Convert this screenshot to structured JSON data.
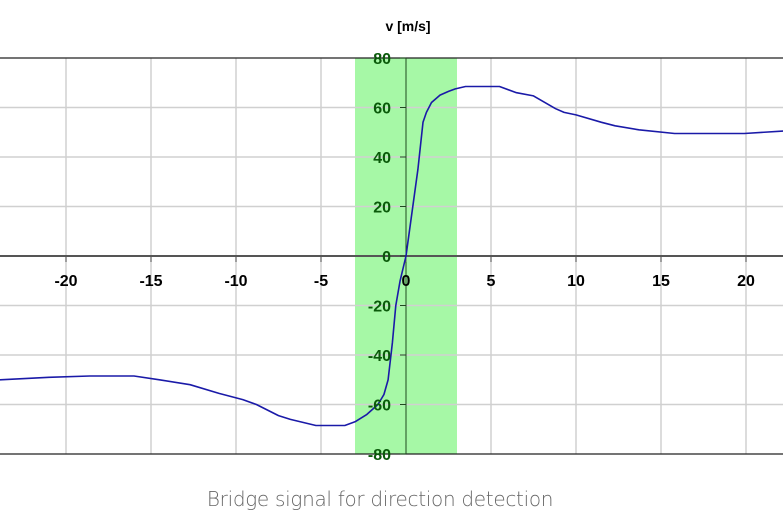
{
  "caption": "Bridge signal for direction detection",
  "chart_data": {
    "type": "line",
    "title": "",
    "ylabel": "v [m/s]",
    "xlabel": "",
    "xlim": [
      -23.9,
      22.2
    ],
    "ylim": [
      -80,
      80
    ],
    "grid": true,
    "x_ticks": [
      -20,
      -15,
      -10,
      -5,
      0,
      5,
      10,
      15,
      20
    ],
    "y_ticks": [
      80,
      60,
      40,
      20,
      0,
      -20,
      -40,
      -60,
      -80
    ],
    "highlight_band": {
      "x_from": -3,
      "x_to": 3,
      "color": "#a6f8a6"
    },
    "colors": {
      "line": "#1a1aa8",
      "ytick": "#0a5a0a",
      "grid": "#d0d0d0",
      "axis": "#333333"
    },
    "series": [
      {
        "name": "v",
        "x": [
          -23.9,
          -21,
          -18.6,
          -16,
          -14.5,
          -12.7,
          -11,
          -9.6,
          -8.8,
          -7.5,
          -6.8,
          -5.3,
          -3.6,
          -3.0,
          -2.3,
          -1.65,
          -1.3,
          -1.05,
          -0.8,
          -0.6,
          -0.35,
          0,
          0.3,
          0.5,
          0.7,
          1.0,
          1.2,
          1.5,
          2.0,
          2.5,
          2.9,
          3.5,
          5.5,
          6.5,
          7.5,
          8.8,
          9.3,
          10.0,
          11.5,
          12.3,
          13.7,
          15.8,
          19.9,
          22.2
        ],
        "y": [
          -50,
          -49,
          -48.5,
          -48.5,
          -50,
          -52,
          -55.5,
          -58,
          -60,
          -64.5,
          -66,
          -68.5,
          -68.5,
          -67,
          -64,
          -60,
          -56,
          -50,
          -35,
          -20,
          -10,
          0,
          15,
          25,
          35,
          54,
          58,
          62,
          65,
          66.5,
          67.5,
          68.5,
          68.5,
          66,
          64.7,
          59.5,
          58,
          57,
          54,
          52.6,
          51,
          49.5,
          49.5,
          50.5
        ]
      }
    ]
  }
}
